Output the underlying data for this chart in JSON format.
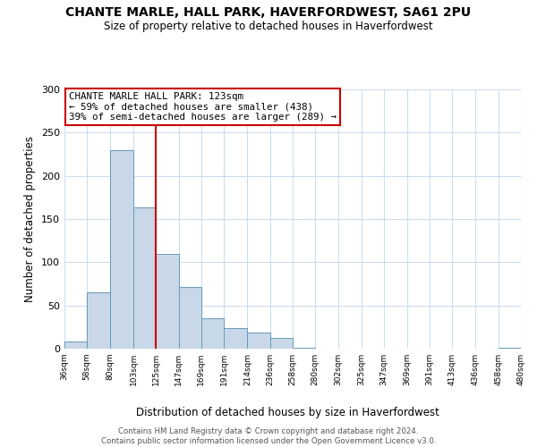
{
  "title": "CHANTE MARLE, HALL PARK, HAVERFORDWEST, SA61 2PU",
  "subtitle": "Size of property relative to detached houses in Haverfordwest",
  "xlabel": "Distribution of detached houses by size in Haverfordwest",
  "ylabel": "Number of detached properties",
  "footer_line1": "Contains HM Land Registry data © Crown copyright and database right 2024.",
  "footer_line2": "Contains public sector information licensed under the Open Government Licence v3.0.",
  "bar_edges": [
    36,
    58,
    80,
    103,
    125,
    147,
    169,
    191,
    214,
    236,
    258,
    280,
    302,
    325,
    347,
    369,
    391,
    413,
    436,
    458,
    480
  ],
  "bar_heights": [
    8,
    65,
    230,
    163,
    110,
    71,
    35,
    24,
    19,
    12,
    1,
    0,
    0,
    0,
    0,
    0,
    0,
    0,
    0,
    1
  ],
  "tick_labels": [
    "36sqm",
    "58sqm",
    "80sqm",
    "103sqm",
    "125sqm",
    "147sqm",
    "169sqm",
    "191sqm",
    "214sqm",
    "236sqm",
    "258sqm",
    "280sqm",
    "302sqm",
    "325sqm",
    "347sqm",
    "369sqm",
    "391sqm",
    "413sqm",
    "436sqm",
    "458sqm",
    "480sqm"
  ],
  "bar_color": "#c8d8e8",
  "bar_edge_color": "#6699bb",
  "vline_x": 125,
  "vline_color": "#cc0000",
  "annotation_title": "CHANTE MARLE HALL PARK: 123sqm",
  "annotation_line1": "← 59% of detached houses are smaller (438)",
  "annotation_line2": "39% of semi-detached houses are larger (289) →",
  "annotation_box_color": "#cc0000",
  "ylim": [
    0,
    300
  ],
  "yticks": [
    0,
    50,
    100,
    150,
    200,
    250,
    300
  ],
  "background_color": "#ffffff",
  "grid_color": "#ccddee"
}
